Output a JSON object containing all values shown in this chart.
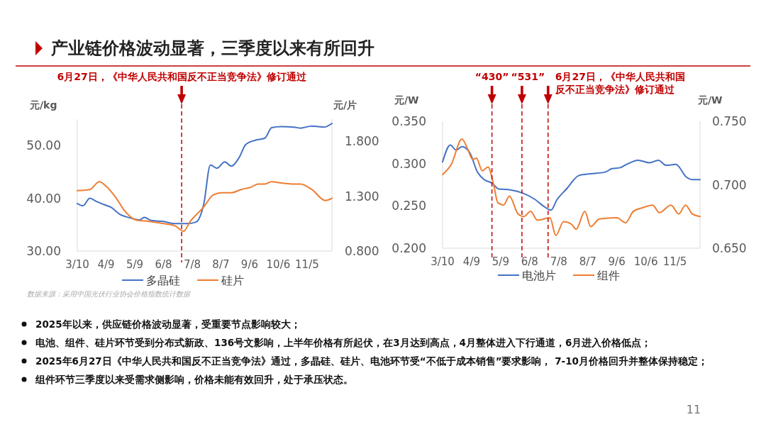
{
  "chart_data": [
    {
      "type": "other",
      "title": "产业链价格波动显著，三季度以来有所回升",
      "annotations": [
        "11"
      ]
    },
    {
      "type": "line",
      "ylabel": "元/kg",
      "y2label": "元/片",
      "legend": "bottom",
      "xlim": [
        "--03-10",
        "--12-01"
      ],
      "xticks": [
        {
          "value": "--03-10",
          "label": "3/10"
        },
        {
          "value": "--04-09",
          "label": "4/9"
        },
        {
          "value": "--05-09",
          "label": "5/9"
        },
        {
          "value": "--06-08",
          "label": "6/8"
        },
        {
          "value": "--07-08",
          "label": "7/8"
        },
        {
          "value": "--08-07",
          "label": "8/7"
        },
        {
          "value": "--09-06",
          "label": "9/6"
        },
        {
          "value": "--10-06",
          "label": "10/6"
        },
        {
          "value": "--11-05",
          "label": "11/5"
        }
      ],
      "ylim": [
        30,
        55
      ],
      "yticks": [
        {
          "value": 30,
          "label": "30.00"
        },
        {
          "value": 40,
          "label": "40.00"
        },
        {
          "value": 50,
          "label": "50.00"
        }
      ],
      "y2lim": [
        0.8,
        2.0
      ],
      "y2ticks": [
        {
          "value": 0.8,
          "label": "0.800"
        },
        {
          "value": 1.3,
          "label": "1.300"
        },
        {
          "value": 1.8,
          "label": "1.800"
        }
      ],
      "series": [
        {
          "name": "多晶硅",
          "color": "#4472c4",
          "x": [
            "--03-10",
            "--03-16",
            "--03-23",
            "--03-30",
            "--04-07",
            "--04-14",
            "--04-24",
            "--05-04",
            "--05-14",
            "--05-19",
            "--05-26",
            "--06-08",
            "--06-20",
            "--07-02",
            "--07-12",
            "--07-20",
            "--07-27",
            "--08-03",
            "--08-11",
            "--08-18",
            "--08-26",
            "--09-02",
            "--09-12",
            "--09-22",
            "--09-29",
            "--10-09",
            "--10-22",
            "--10-29",
            "--11-10",
            "--11-23",
            "--12-01"
          ],
          "values": [
            39.0,
            38.6,
            40.0,
            39.4,
            38.8,
            38.3,
            36.9,
            36.3,
            35.9,
            36.4,
            35.8,
            35.6,
            35.2,
            35.2,
            35.5,
            38.8,
            46.3,
            45.7,
            46.9,
            46.1,
            47.7,
            50.2,
            51.0,
            51.4,
            53.4,
            53.6,
            53.5,
            53.3,
            53.7,
            53.5,
            54.2
          ]
        },
        {
          "name": "硅片",
          "color": "#ed7d31",
          "axis": "y2",
          "x": [
            "--03-10",
            "--03-23",
            "--04-02",
            "--04-09",
            "--04-19",
            "--04-29",
            "--05-11",
            "--05-24",
            "--06-08",
            "--06-20",
            "--06-29",
            "--07-06",
            "--07-20",
            "--07-30",
            "--08-08",
            "--08-18",
            "--08-28",
            "--09-07",
            "--09-15",
            "--09-22",
            "--09-29",
            "--10-09",
            "--10-22",
            "--10-29",
            "--11-10",
            "--11-24",
            "--12-01"
          ],
          "values": [
            1.35,
            1.36,
            1.43,
            1.39,
            1.29,
            1.16,
            1.08,
            1.07,
            1.05,
            1.03,
            0.98,
            1.07,
            1.2,
            1.31,
            1.33,
            1.33,
            1.36,
            1.38,
            1.41,
            1.41,
            1.43,
            1.42,
            1.41,
            1.41,
            1.36,
            1.26,
            1.28
          ]
        }
      ],
      "ref_lines": [
        {
          "axis": "x",
          "value": "--06-27",
          "label": "6月27日，《中华人民共和国反不正当竞争法》修订通过",
          "color": "#c00000",
          "line_style": "dashed"
        }
      ],
      "annotations": [
        "数据来源：采用中国光伏行业协会价格指数统计数据"
      ]
    },
    {
      "type": "line",
      "ylabel": "元/W",
      "y2label": "元/W",
      "legend": "bottom",
      "xlim": [
        "--03-10",
        "--12-01"
      ],
      "xticks": [
        {
          "value": "--03-10",
          "label": "3/10"
        },
        {
          "value": "--04-09",
          "label": "4/9"
        },
        {
          "value": "--05-09",
          "label": "5/9"
        },
        {
          "value": "--06-08",
          "label": "6/8"
        },
        {
          "value": "--07-08",
          "label": "7/8"
        },
        {
          "value": "--08-07",
          "label": "8/7"
        },
        {
          "value": "--09-06",
          "label": "9/6"
        },
        {
          "value": "--10-06",
          "label": "10/6"
        },
        {
          "value": "--11-05",
          "label": "11/5"
        }
      ],
      "ylim": [
        0.2,
        0.35
      ],
      "yticks": [
        {
          "value": 0.2,
          "label": "0.200"
        },
        {
          "value": 0.25,
          "label": "0.250"
        },
        {
          "value": 0.3,
          "label": "0.300"
        },
        {
          "value": 0.35,
          "label": "0.350"
        }
      ],
      "y2lim": [
        0.65,
        0.75
      ],
      "y2ticks": [
        {
          "value": 0.65,
          "label": "0.650"
        },
        {
          "value": 0.7,
          "label": "0.700"
        },
        {
          "value": 0.75,
          "label": "0.750"
        }
      ],
      "series": [
        {
          "name": "电池片",
          "color": "#4472c4",
          "x": [
            "--03-10",
            "--03-18",
            "--03-24",
            "--03-30",
            "--04-07",
            "--04-15",
            "--04-22",
            "--04-30",
            "--05-07",
            "--05-19",
            "--06-01",
            "--06-13",
            "--06-22",
            "--06-30",
            "--07-06",
            "--07-16",
            "--07-29",
            "--08-10",
            "--08-25",
            "--09-01",
            "--09-09",
            "--09-16",
            "--09-28",
            "--10-10",
            "--10-19",
            "--10-27",
            "--11-06",
            "--11-17",
            "--11-23",
            "--12-01"
          ],
          "values": [
            0.302,
            0.322,
            0.316,
            0.32,
            0.313,
            0.29,
            0.281,
            0.277,
            0.27,
            0.269,
            0.265,
            0.258,
            0.25,
            0.245,
            0.257,
            0.27,
            0.286,
            0.288,
            0.29,
            0.294,
            0.295,
            0.299,
            0.304,
            0.301,
            0.304,
            0.298,
            0.299,
            0.284,
            0.281,
            0.281
          ]
        },
        {
          "name": "组件",
          "color": "#ed7d31",
          "axis": "y2",
          "x": [
            "--03-10",
            "--03-19",
            "--03-30",
            "--04-05",
            "--04-10",
            "--04-14",
            "--04-20",
            "--04-26",
            "--05-02",
            "--05-06",
            "--05-12",
            "--05-18",
            "--05-27",
            "--06-02",
            "--06-09",
            "--06-16",
            "--06-29",
            "--07-05",
            "--07-13",
            "--07-21",
            "--07-26",
            "--08-04",
            "--08-10",
            "--08-19",
            "--09-06",
            "--09-15",
            "--09-23",
            "--10-03",
            "--10-13",
            "--10-20",
            "--11-01",
            "--11-09",
            "--11-16",
            "--11-23",
            "--12-01"
          ],
          "values": [
            0.708,
            0.716,
            0.736,
            0.728,
            0.72,
            0.721,
            0.711,
            0.714,
            0.699,
            0.686,
            0.684,
            0.691,
            0.677,
            0.675,
            0.679,
            0.672,
            0.674,
            0.66,
            0.671,
            0.669,
            0.665,
            0.679,
            0.667,
            0.673,
            0.674,
            0.67,
            0.679,
            0.682,
            0.684,
            0.678,
            0.684,
            0.677,
            0.684,
            0.677,
            0.675
          ]
        }
      ],
      "ref_lines": [
        {
          "axis": "x",
          "value": "--04-30",
          "label": "“430”",
          "color": "#c00000",
          "line_style": "dashed"
        },
        {
          "axis": "x",
          "value": "--05-31",
          "label": "“531”",
          "color": "#c00000",
          "line_style": "dashed"
        },
        {
          "axis": "x",
          "value": "--06-27",
          "label": "6月27日，《中华人民共和国反不正当竞争法》修订通过",
          "color": "#c00000",
          "line_style": "dashed"
        }
      ]
    },
    {
      "type": "other",
      "annotations": [
        "2025年以来，供应链价格波动显著，受重要节点影响较大；",
        "电池、组件、硅片环节受到分布式新政、136号文影响，上半年价格有所起伏，在3月达到高点，4月整体进入下行通道，6月进入价格低点；",
        "2025年6月27日《中华人民共和国反不正当竞争法》通过，多晶硅、硅片、电池环节受“不低于成本销售”要求影响， 7-10月价格回升并整体保持稳定；",
        "组件环节三季度以来受需求侧影响，价格未能有效回升，处于承压状态。"
      ]
    }
  ]
}
